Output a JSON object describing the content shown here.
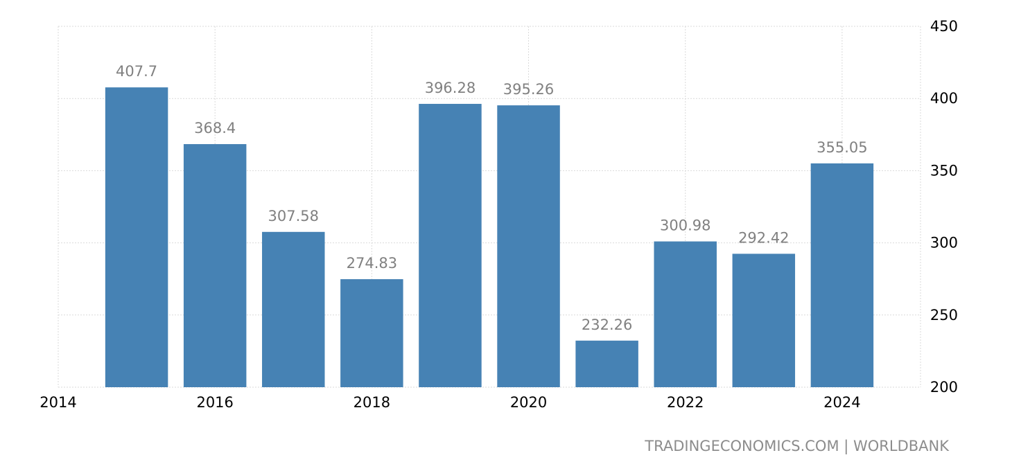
{
  "chart_data": {
    "type": "bar",
    "x": [
      2015,
      2016,
      2017,
      2018,
      2019,
      2020,
      2021,
      2022,
      2023,
      2024
    ],
    "values": [
      407.7,
      368.4,
      307.58,
      274.83,
      396.28,
      395.26,
      232.26,
      300.98,
      292.42,
      355.05
    ],
    "data_labels": [
      "407.7",
      "368.4",
      "307.58",
      "274.83",
      "396.28",
      "395.26",
      "232.26",
      "300.98",
      "292.42",
      "355.05"
    ],
    "x_ticks": [
      "2014",
      "2016",
      "2018",
      "2020",
      "2022",
      "2024"
    ],
    "x_tick_values": [
      2014,
      2016,
      2018,
      2020,
      2022,
      2024
    ],
    "y_ticks": [
      "200",
      "250",
      "300",
      "350",
      "400",
      "450"
    ],
    "y_tick_values": [
      200,
      250,
      300,
      350,
      400,
      450
    ],
    "xlim": [
      2014,
      2025
    ],
    "ylim": [
      200,
      450
    ],
    "y_axis_side": "right",
    "grid": true,
    "bar_color": "#4682b4",
    "label_color": "#808080"
  },
  "source": "TRADINGECONOMICS.COM | WORLDBANK"
}
